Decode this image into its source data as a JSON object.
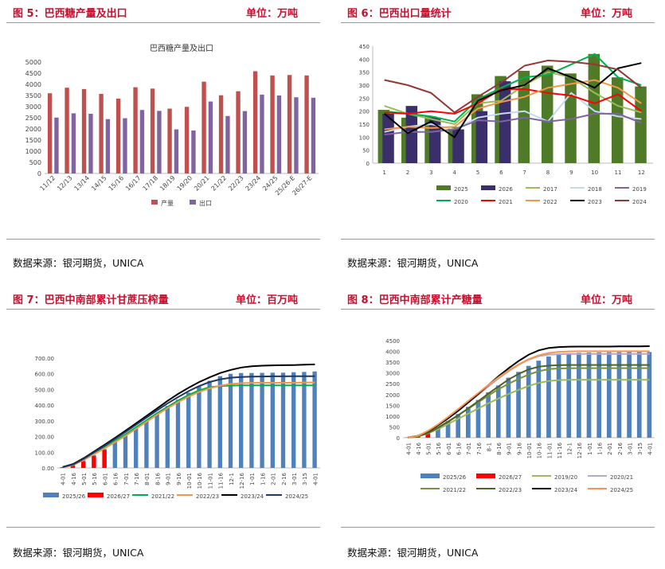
{
  "panels": [
    {
      "title": "图 5：巴西糖产量及出口",
      "unit": "单位：万吨",
      "source": "数据来源：银河期货，UNICA",
      "chart_data": {
        "type": "bar",
        "title": "巴西糖产量及出口",
        "categories": [
          "11/12",
          "12/13",
          "13/14",
          "14/15",
          "15/16",
          "16/17",
          "17/18",
          "18/19",
          "19/20",
          "20/21",
          "21/22",
          "22/23",
          "23/24",
          "24/25",
          "25/26-E",
          "26/27-E"
        ],
        "ylim": [
          0,
          5000
        ],
        "yticks": [
          0,
          500,
          1000,
          1500,
          2000,
          2500,
          3000,
          3500,
          4000,
          4500,
          5000
        ],
        "legend_position": "bottom",
        "series": [
          {
            "name": "产量",
            "color": "#c0504d",
            "values": [
              3600,
              3850,
              3790,
              3570,
              3360,
              3870,
              3810,
              2910,
              2990,
              4120,
              3510,
              3690,
              4590,
              4400,
              4420,
              4400
            ]
          },
          {
            "name": "出口",
            "color": "#8064a2",
            "values": [
              2510,
              2700,
              2680,
              2440,
              2480,
              2850,
              2810,
              1980,
              1930,
              3230,
              2580,
              2800,
              3540,
              3500,
              3420,
              3400
            ]
          }
        ]
      }
    },
    {
      "title": "图 6：巴西出口量统计",
      "unit": "单位：万吨",
      "source": "数据来源：银河期货，UNICA",
      "chart_data": {
        "type": "bar",
        "categories": [
          "1",
          "2",
          "3",
          "4",
          "5",
          "6",
          "7",
          "8",
          "9",
          "10",
          "11",
          "12"
        ],
        "ylim": [
          0,
          450
        ],
        "yticks": [
          0,
          50,
          100,
          150,
          200,
          250,
          300,
          350,
          400,
          450
        ],
        "legend_position": "bottom",
        "bar_series": [
          {
            "name": "2025",
            "color": "#4f7a28",
            "values": [
              205,
              175,
              180,
              140,
              265,
              335,
              355,
              375,
              345,
              420,
              330,
              295
            ]
          },
          {
            "name": "2026",
            "color": "#3a2f6b",
            "values": [
              190,
              220,
              175,
              130,
              200,
              315,
              null,
              null,
              null,
              null,
              null,
              null
            ]
          }
        ],
        "line_series": [
          {
            "name": "2017",
            "color": "#9bbb59",
            "values": [
              220,
              190,
              170,
              150,
              230,
              240,
              300,
              350,
              330,
              270,
              220,
              195
            ]
          },
          {
            "name": "2018",
            "color": "#c5d9f1",
            "values": [
              120,
              140,
              150,
              130,
              175,
              190,
              200,
              160,
              270,
              200,
              180,
              170
            ]
          },
          {
            "name": "2019",
            "color": "#8064a2",
            "values": [
              110,
              120,
              120,
              130,
              165,
              160,
              175,
              160,
              170,
              190,
              190,
              155
            ]
          },
          {
            "name": "2020",
            "color": "#00b050",
            "values": [
              200,
              190,
              180,
              160,
              245,
              290,
              330,
              340,
              380,
              420,
              330,
              300
            ]
          },
          {
            "name": "2021",
            "color": "#ff0000",
            "values": [
              195,
              190,
              200,
              190,
              230,
              285,
              285,
              270,
              260,
              230,
              265,
              200
            ]
          },
          {
            "name": "2022",
            "color": "#f79646",
            "values": [
              130,
              140,
              135,
              140,
              210,
              235,
              255,
              290,
              305,
              320,
              290,
              230
            ]
          },
          {
            "name": "2023",
            "color": "#000000",
            "values": [
              190,
              115,
              160,
              100,
              240,
              280,
              300,
              365,
              330,
              290,
              365,
              385
            ]
          },
          {
            "name": "2024",
            "color": "#953735",
            "values": [
              320,
              300,
              270,
              195,
              255,
              310,
              375,
              395,
              390,
              380,
              360,
              290
            ]
          }
        ]
      }
    },
    {
      "title": "图 7：巴西中南部累计甘蔗压榨量",
      "unit": "单位：百万吨",
      "source": "数据来源：银河期货，UNICA",
      "chart_data": {
        "type": "bar",
        "categories": [
          "4-01",
          "4-16",
          "5-01",
          "5-16",
          "6-01",
          "6-16",
          "7-01",
          "7-16",
          "8-01",
          "8-16",
          "9-01",
          "9-16",
          "10-01",
          "10-16",
          "11-01",
          "11-16",
          "12-1",
          "12-16",
          "1-01",
          "1-16",
          "2-01",
          "2-16",
          "3-01",
          "3-15",
          "4-01"
        ],
        "ylim": [
          0,
          700
        ],
        "yticks": [
          "0.00",
          "100.00",
          "200.00",
          "300.00",
          "400.00",
          "500.00",
          "600.00",
          "700.00"
        ],
        "legend_position": "bottom",
        "bar_series": [
          {
            "name": "2025/26",
            "color": "#4f81bd",
            "values": [
              5,
              18,
              48,
              82,
              120,
              165,
              205,
              255,
              300,
              345,
              395,
              435,
              480,
              520,
              555,
              585,
              600,
              605,
              605,
              606,
              607,
              607,
              610,
              612,
              615
            ]
          },
          {
            "name": "2026/27",
            "color": "#ff0000",
            "values": [
              3,
              15,
              40,
              75,
              115,
              null,
              null,
              null,
              null,
              null,
              null,
              null,
              null,
              null,
              null,
              null,
              null,
              null,
              null,
              null,
              null,
              null,
              null,
              null,
              null
            ]
          }
        ],
        "line_series": [
          {
            "name": "2021/22",
            "color": "#00b050",
            "values": [
              5,
              22,
              55,
              95,
              135,
              175,
              215,
              260,
              305,
              350,
              390,
              430,
              465,
              495,
              515,
              522,
              525,
              526,
              526,
              526,
              526,
              526,
              526,
              526,
              526
            ]
          },
          {
            "name": "2022/23",
            "color": "#f79646",
            "values": [
              4,
              18,
              50,
              88,
              125,
              165,
              205,
              250,
              295,
              340,
              382,
              420,
              455,
              485,
              508,
              525,
              535,
              540,
              542,
              543,
              543,
              543,
              543,
              545,
              545
            ]
          },
          {
            "name": "2023/24",
            "color": "#000000",
            "values": [
              6,
              25,
              62,
              105,
              148,
              192,
              238,
              285,
              332,
              380,
              428,
              472,
              512,
              548,
              578,
              605,
              625,
              640,
              648,
              652,
              654,
              655,
              656,
              658,
              660
            ]
          },
          {
            "name": "2024/25",
            "color": "#1f3864",
            "values": [
              5,
              22,
              58,
              100,
              142,
              186,
              230,
              276,
              322,
              368,
              412,
              452,
              490,
              522,
              548,
              565,
              575,
              580,
              582,
              583,
              584,
              584,
              585,
              585,
              585
            ]
          }
        ]
      }
    },
    {
      "title": "图 8：巴西中南部累计产糖量",
      "unit": "单位：万吨",
      "source": "数据来源：银河期货，UNICA",
      "chart_data": {
        "type": "bar",
        "categories": [
          "4-01",
          "4-16",
          "5-01",
          "5-16",
          "6-01",
          "6-16",
          "7-01",
          "7-16",
          "8-1",
          "8-16",
          "9-01",
          "9-16",
          "10-01",
          "10-16",
          "11-01",
          "11-16",
          "12-1",
          "12-16",
          "1-01",
          "1-16",
          "2-01",
          "2-16",
          "3-01",
          "3-15",
          "4-01"
        ],
        "ylim": [
          0,
          4500
        ],
        "yticks": [
          0,
          500,
          1000,
          1500,
          2000,
          2500,
          3000,
          3500,
          4000,
          4500
        ],
        "legend_position": "bottom",
        "bar_series": [
          {
            "name": "2025/26",
            "color": "#4f81bd",
            "values": [
              10,
              70,
              260,
              500,
              780,
              1100,
              1430,
              1750,
              2100,
              2420,
              2780,
              3050,
              3330,
              3570,
              3760,
              3880,
              3920,
              3940,
              3950,
              3955,
              3960,
              3962,
              3965,
              3968,
              3970
            ]
          },
          {
            "name": "2026/27",
            "color": "#ff0000",
            "values": [
              10,
              60,
              250,
              null,
              null,
              null,
              null,
              null,
              null,
              null,
              null,
              null,
              null,
              null,
              null,
              null,
              null,
              null,
              null,
              null,
              null,
              null,
              null,
              null,
              null
            ]
          }
        ],
        "line_series": [
          {
            "name": "2019/20",
            "color": "#9bbb59",
            "values": [
              10,
              60,
              200,
              400,
              640,
              880,
              1120,
              1360,
              1600,
              1820,
              2030,
              2220,
              2400,
              2540,
              2630,
              2670,
              2680,
              2685,
              2685,
              2685,
              2685,
              2685,
              2685,
              2685,
              2685
            ]
          },
          {
            "name": "2020/21",
            "color": "#b4a7d6",
            "values": [
              15,
              90,
              320,
              600,
              930,
              1270,
              1630,
              2000,
              2380,
              2750,
              3080,
              3380,
              3620,
              3780,
              3850,
              3870,
              3880,
              3885,
              3885,
              3885,
              3885,
              3885,
              3885,
              3885,
              3885
            ]
          },
          {
            "name": "2021/22",
            "color": "#77933c",
            "values": [
              10,
              70,
              250,
              480,
              760,
              1050,
              1350,
              1650,
              1960,
              2250,
              2500,
              2730,
              2930,
              3080,
              3180,
              3210,
              3220,
              3225,
              3225,
              3225,
              3225,
              3225,
              3225,
              3225,
              3225
            ]
          },
          {
            "name": "2022/23",
            "color": "#4f6228",
            "values": [
              8,
              60,
              220,
              460,
              740,
              1040,
              1370,
              1700,
              2050,
              2380,
              2700,
              2960,
              3170,
              3290,
              3340,
              3360,
              3370,
              3370,
              3370,
              3370,
              3370,
              3370,
              3370,
              3370,
              3370
            ]
          },
          {
            "name": "2023/24",
            "color": "#000000",
            "values": [
              12,
              90,
              300,
              580,
              900,
              1250,
              1640,
              2040,
              2450,
              2850,
              3220,
              3560,
              3850,
              4050,
              4160,
              4200,
              4220,
              4225,
              4225,
              4225,
              4225,
              4230,
              4230,
              4235,
              4240
            ]
          },
          {
            "name": "2024/25",
            "color": "#f79646",
            "values": [
              10,
              80,
              320,
              620,
              970,
              1330,
              1710,
              2080,
              2450,
              2800,
              3120,
              3400,
              3640,
              3820,
              3930,
              3980,
              4000,
              4005,
              4005,
              4005,
              4005,
              4005,
              4005,
              4005,
              4005
            ]
          }
        ]
      }
    }
  ]
}
